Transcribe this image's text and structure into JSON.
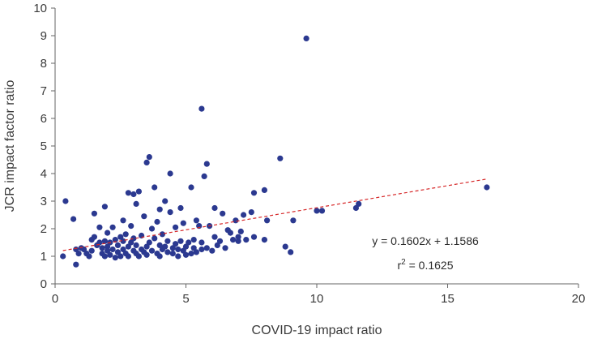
{
  "chart_data": {
    "type": "scatter",
    "title": "",
    "xlabel": "COVID-19 impact ratio",
    "ylabel": "JCR impact factor ratio",
    "xlim": [
      0,
      20
    ],
    "ylim": [
      0,
      10
    ],
    "xticks": [
      "0",
      "5",
      "10",
      "15",
      "20"
    ],
    "yticks": [
      "0",
      "1",
      "2",
      "3",
      "4",
      "5",
      "6",
      "7",
      "8",
      "9",
      "10"
    ],
    "grid": false,
    "legend": "none",
    "colors": {
      "points": "#2b3990",
      "trendline": "#d62728",
      "axis": "#666666"
    },
    "trendline": {
      "slope": 0.1602,
      "intercept": 1.1586,
      "x_range": [
        0.3,
        16.5
      ],
      "style": "dashed"
    },
    "equation_label": "y = 0.1602x + 1.1586",
    "r2_prefix": "r",
    "r2_exponent": "2",
    "r2_value": " = 0.1625",
    "points": [
      [
        0.3,
        1.0
      ],
      [
        0.4,
        3.0
      ],
      [
        0.7,
        2.35
      ],
      [
        0.8,
        1.25
      ],
      [
        0.8,
        0.7
      ],
      [
        0.9,
        1.1
      ],
      [
        1.0,
        1.3
      ],
      [
        1.1,
        1.25
      ],
      [
        1.2,
        1.1
      ],
      [
        1.3,
        1.0
      ],
      [
        1.4,
        1.6
      ],
      [
        1.4,
        1.2
      ],
      [
        1.5,
        1.7
      ],
      [
        1.5,
        2.55
      ],
      [
        1.6,
        1.4
      ],
      [
        1.7,
        1.5
      ],
      [
        1.7,
        2.05
      ],
      [
        1.8,
        1.1
      ],
      [
        1.8,
        1.3
      ],
      [
        1.9,
        1.0
      ],
      [
        1.9,
        2.8
      ],
      [
        1.9,
        1.55
      ],
      [
        2.0,
        1.35
      ],
      [
        2.0,
        1.2
      ],
      [
        2.0,
        1.85
      ],
      [
        2.1,
        1.5
      ],
      [
        2.1,
        1.05
      ],
      [
        2.2,
        2.05
      ],
      [
        2.2,
        1.25
      ],
      [
        2.3,
        1.6
      ],
      [
        2.3,
        0.95
      ],
      [
        2.4,
        1.4
      ],
      [
        2.4,
        1.15
      ],
      [
        2.5,
        1.7
      ],
      [
        2.5,
        1.0
      ],
      [
        2.6,
        1.25
      ],
      [
        2.6,
        1.55
      ],
      [
        2.6,
        2.3
      ],
      [
        2.7,
        1.1
      ],
      [
        2.7,
        1.8
      ],
      [
        2.8,
        1.35
      ],
      [
        2.8,
        3.3
      ],
      [
        2.8,
        1.0
      ],
      [
        2.9,
        2.1
      ],
      [
        2.9,
        1.5
      ],
      [
        3.0,
        1.2
      ],
      [
        3.0,
        1.65
      ],
      [
        3.0,
        3.25
      ],
      [
        3.1,
        2.9
      ],
      [
        3.1,
        1.1
      ],
      [
        3.1,
        1.4
      ],
      [
        3.2,
        3.35
      ],
      [
        3.2,
        1.0
      ],
      [
        3.3,
        1.25
      ],
      [
        3.3,
        1.75
      ],
      [
        3.4,
        2.45
      ],
      [
        3.4,
        1.15
      ],
      [
        3.5,
        1.35
      ],
      [
        3.5,
        4.4
      ],
      [
        3.5,
        1.05
      ],
      [
        3.6,
        4.6
      ],
      [
        3.6,
        1.5
      ],
      [
        3.7,
        2.0
      ],
      [
        3.7,
        1.2
      ],
      [
        3.8,
        3.5
      ],
      [
        3.8,
        1.65
      ],
      [
        3.9,
        1.1
      ],
      [
        3.9,
        2.25
      ],
      [
        4.0,
        1.4
      ],
      [
        4.0,
        1.0
      ],
      [
        4.0,
        2.7
      ],
      [
        4.1,
        1.25
      ],
      [
        4.1,
        1.8
      ],
      [
        4.2,
        1.35
      ],
      [
        4.2,
        3.0
      ],
      [
        4.3,
        1.15
      ],
      [
        4.3,
        1.55
      ],
      [
        4.4,
        2.6
      ],
      [
        4.4,
        4.0
      ],
      [
        4.5,
        1.3
      ],
      [
        4.5,
        1.1
      ],
      [
        4.6,
        1.45
      ],
      [
        4.6,
        2.05
      ],
      [
        4.7,
        1.0
      ],
      [
        4.7,
        1.25
      ],
      [
        4.8,
        2.75
      ],
      [
        4.8,
        1.55
      ],
      [
        4.9,
        1.2
      ],
      [
        4.9,
        2.2
      ],
      [
        5.0,
        1.35
      ],
      [
        5.0,
        1.05
      ],
      [
        5.1,
        1.5
      ],
      [
        5.2,
        3.5
      ],
      [
        5.2,
        1.1
      ],
      [
        5.3,
        1.3
      ],
      [
        5.3,
        1.6
      ],
      [
        5.4,
        2.3
      ],
      [
        5.4,
        1.15
      ],
      [
        5.5,
        2.1
      ],
      [
        5.6,
        1.25
      ],
      [
        5.6,
        1.5
      ],
      [
        5.6,
        6.35
      ],
      [
        5.7,
        3.9
      ],
      [
        5.8,
        4.35
      ],
      [
        5.8,
        1.3
      ],
      [
        5.9,
        2.1
      ],
      [
        6.0,
        1.2
      ],
      [
        6.1,
        1.7
      ],
      [
        6.1,
        2.75
      ],
      [
        6.2,
        1.4
      ],
      [
        6.3,
        1.55
      ],
      [
        6.4,
        2.55
      ],
      [
        6.5,
        1.3
      ],
      [
        6.6,
        1.95
      ],
      [
        6.7,
        1.85
      ],
      [
        6.8,
        1.6
      ],
      [
        6.9,
        2.3
      ],
      [
        7.0,
        1.7
      ],
      [
        7.0,
        1.55
      ],
      [
        7.1,
        1.9
      ],
      [
        7.2,
        2.5
      ],
      [
        7.3,
        1.6
      ],
      [
        7.5,
        2.6
      ],
      [
        7.6,
        3.3
      ],
      [
        7.6,
        1.7
      ],
      [
        8.0,
        3.4
      ],
      [
        8.0,
        1.6
      ],
      [
        8.1,
        2.3
      ],
      [
        8.6,
        4.55
      ],
      [
        8.8,
        1.35
      ],
      [
        9.0,
        1.15
      ],
      [
        9.1,
        2.3
      ],
      [
        9.6,
        8.9
      ],
      [
        10.0,
        2.65
      ],
      [
        10.2,
        2.65
      ],
      [
        11.5,
        2.75
      ],
      [
        11.6,
        2.9
      ],
      [
        16.5,
        3.5
      ]
    ]
  }
}
